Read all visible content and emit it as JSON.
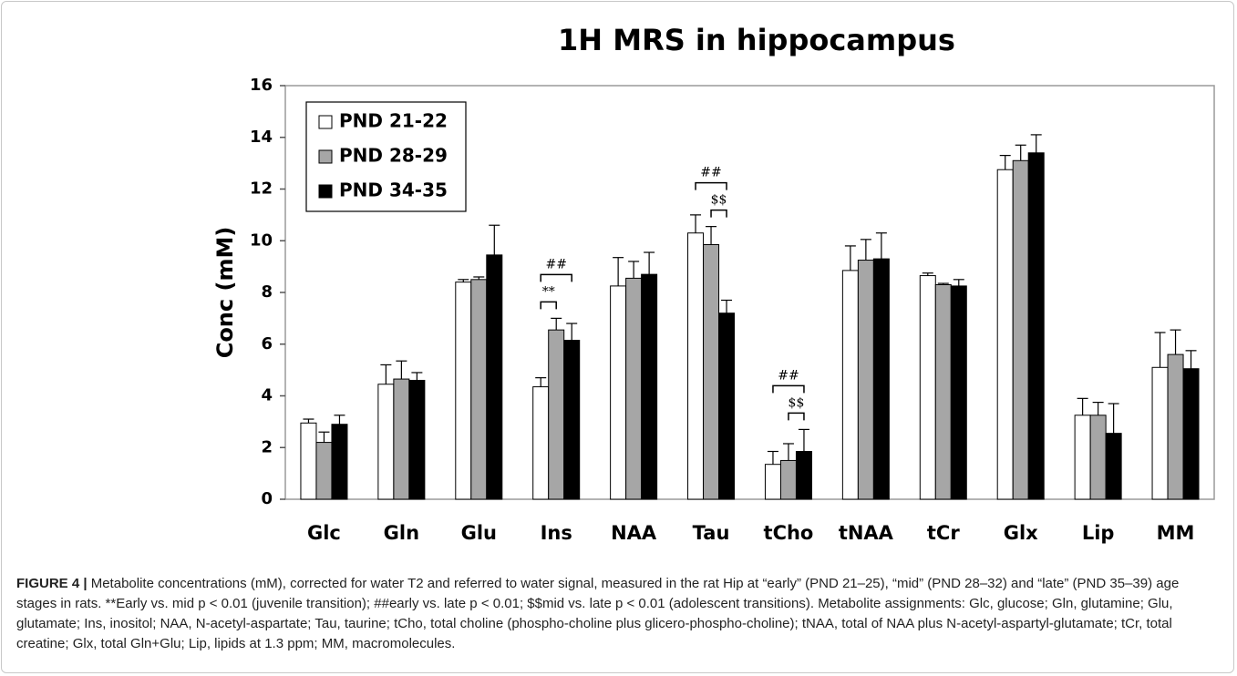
{
  "chart_data": {
    "type": "bar",
    "title": "1H MRS in hippocampus",
    "y_label": "Conc (mM)",
    "categories": [
      "Glc",
      "Gln",
      "Glu",
      "Ins",
      "NAA",
      "Tau",
      "tCho",
      "tNAA",
      "tCr",
      "Glx",
      "Lip",
      "MM"
    ],
    "series": [
      {
        "name": "PND 21-22",
        "color": "#ffffff",
        "values": [
          2.95,
          4.45,
          8.4,
          4.35,
          8.25,
          10.3,
          1.35,
          8.85,
          8.65,
          12.75,
          3.25,
          5.1
        ],
        "errors": [
          0.15,
          0.75,
          0.1,
          0.35,
          1.1,
          0.7,
          0.5,
          0.95,
          0.1,
          0.55,
          0.65,
          1.35
        ]
      },
      {
        "name": "PND 28-29",
        "color": "#a6a6a6",
        "values": [
          2.2,
          4.65,
          8.5,
          6.55,
          8.55,
          9.85,
          1.5,
          9.25,
          8.3,
          13.1,
          3.25,
          5.6
        ],
        "errors": [
          0.4,
          0.7,
          0.1,
          0.45,
          0.65,
          0.7,
          0.65,
          0.8,
          0.05,
          0.6,
          0.5,
          0.95
        ]
      },
      {
        "name": "PND 34-35",
        "color": "#000000",
        "values": [
          2.9,
          4.6,
          9.45,
          6.15,
          8.7,
          7.2,
          1.85,
          9.3,
          8.25,
          13.4,
          2.55,
          5.05
        ],
        "errors": [
          0.35,
          0.3,
          1.15,
          0.65,
          0.85,
          0.5,
          0.85,
          1.0,
          0.25,
          0.7,
          1.15,
          0.7
        ]
      }
    ],
    "annotations": [
      {
        "text": "**",
        "category": "Ins",
        "series": [
          "PND 21-22",
          "PND 28-29"
        ]
      },
      {
        "text": "##",
        "category": "Ins",
        "series": [
          "PND 21-22",
          "PND 34-35"
        ]
      },
      {
        "text": "$$",
        "category": "Tau",
        "series": [
          "PND 28-29",
          "PND 34-35"
        ]
      },
      {
        "text": "##",
        "category": "Tau",
        "series": [
          "PND 21-22",
          "PND 34-35"
        ]
      },
      {
        "text": "$$",
        "category": "tCho",
        "series": [
          "PND 28-29",
          "PND 34-35"
        ]
      },
      {
        "text": "##",
        "category": "tCho",
        "series": [
          "PND 21-22",
          "PND 34-35"
        ]
      }
    ],
    "ylim": [
      0,
      16
    ],
    "yticks": [
      0,
      2,
      4,
      6,
      8,
      10,
      12,
      14,
      16
    ],
    "legend": "upper left"
  },
  "caption": {
    "label": "FIGURE 4 |",
    "text": "Metabolite concentrations (mM), corrected for water T2 and referred to water signal, measured in the rat Hip at “early” (PND 21–25), “mid” (PND 28–32) and “late” (PND 35–39) age stages in rats. **Early vs. mid p < 0.01 (juvenile transition); ##early vs. late p < 0.01; $$mid vs. late p < 0.01 (adolescent transitions). Metabolite assignments: Glc, glucose; Gln, glutamine; Glu, glutamate; Ins, inositol; NAA, N-acetyl-aspartate; Tau, taurine; tCho, total choline (phospho-choline plus glicero-phospho-choline); tNAA, total of NAA plus N-acetyl-aspartyl-glutamate; tCr, total creatine; Glx, total Gln+Glu; Lip, lipids at 1.3 ppm; MM, macromolecules."
  }
}
